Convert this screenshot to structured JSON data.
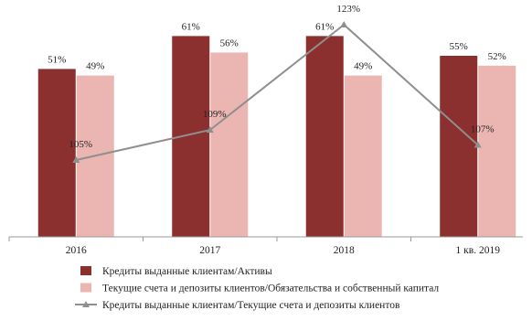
{
  "chart_data": {
    "type": "bar",
    "categories": [
      "2016",
      "2017",
      "2018",
      "1 кв. 2019"
    ],
    "series": [
      {
        "name": "Кредиты выданные клиентам/Активы",
        "type": "bar",
        "axis": "left",
        "color": "#8c2f2f",
        "values": [
          51,
          61,
          61,
          55
        ],
        "labels": [
          "51%",
          "61%",
          "61%",
          "55%"
        ]
      },
      {
        "name": "Текущие счета и депозиты клиентов/Обязательства и собственный капитал",
        "type": "bar",
        "axis": "left",
        "color": "#ebb6b2",
        "values": [
          49,
          56,
          49,
          52
        ],
        "labels": [
          "49%",
          "56%",
          "49%",
          "52%"
        ]
      },
      {
        "name": "Кредиты выданные клиентам/Текущие счета и депозиты клиентов",
        "type": "line",
        "axis": "right",
        "color": "#8f8f8f",
        "values": [
          105,
          109,
          123,
          107
        ],
        "labels": [
          "105%",
          "109%",
          "123%",
          "107%"
        ]
      }
    ],
    "ylim_bars": [
      0,
      70
    ],
    "ylim_line": [
      95,
      125
    ],
    "grid": false,
    "legend_position": "bottom"
  }
}
